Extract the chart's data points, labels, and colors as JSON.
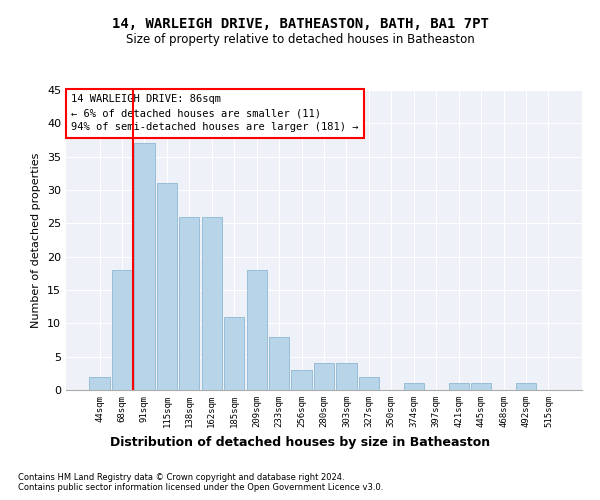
{
  "title": "14, WARLEIGH DRIVE, BATHEASTON, BATH, BA1 7PT",
  "subtitle": "Size of property relative to detached houses in Batheaston",
  "xlabel": "Distribution of detached houses by size in Batheaston",
  "ylabel": "Number of detached properties",
  "footnote1": "Contains HM Land Registry data © Crown copyright and database right 2024.",
  "footnote2": "Contains public sector information licensed under the Open Government Licence v3.0.",
  "annotation_line1": "14 WARLEIGH DRIVE: 86sqm",
  "annotation_line2": "← 6% of detached houses are smaller (11)",
  "annotation_line3": "94% of semi-detached houses are larger (181) →",
  "bar_labels": [
    "44sqm",
    "68sqm",
    "91sqm",
    "115sqm",
    "138sqm",
    "162sqm",
    "185sqm",
    "209sqm",
    "233sqm",
    "256sqm",
    "280sqm",
    "303sqm",
    "327sqm",
    "350sqm",
    "374sqm",
    "397sqm",
    "421sqm",
    "445sqm",
    "468sqm",
    "492sqm",
    "515sqm"
  ],
  "bar_values": [
    2,
    18,
    37,
    31,
    26,
    26,
    11,
    18,
    8,
    3,
    4,
    4,
    2,
    0,
    1,
    0,
    1,
    1,
    0,
    1,
    0
  ],
  "bar_color": "#b8d4e8",
  "bar_edge_color": "#8fb8d4",
  "red_line_x": 1.5,
  "ylim": [
    0,
    45
  ],
  "yticks": [
    0,
    5,
    10,
    15,
    20,
    25,
    30,
    35,
    40,
    45
  ],
  "bg_color": "#eef2f8",
  "grid_color": "#ffffff",
  "title_fontsize": 10,
  "subtitle_fontsize": 9
}
